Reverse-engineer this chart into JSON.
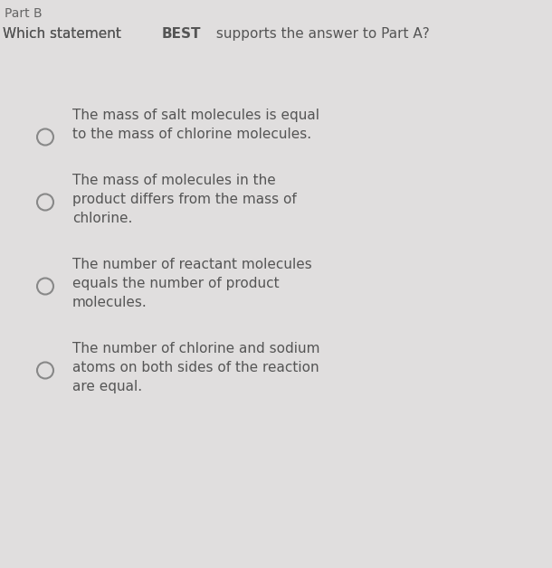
{
  "header_part": "Part B",
  "options": [
    {
      "lines": [
        "The mass of salt molecules is equal",
        "to the mass of chlorine molecules."
      ],
      "circle_line_idx": 1
    },
    {
      "lines": [
        "The mass of molecules in the",
        "product differs from the mass of",
        "chlorine."
      ],
      "circle_line_idx": 1
    },
    {
      "lines": [
        "The number of reactant molecules",
        "equals the number of product",
        "molecules."
      ],
      "circle_line_idx": 1
    },
    {
      "lines": [
        "The number of chlorine and sodium",
        "atoms on both sides of the reaction",
        "are equal."
      ],
      "circle_line_idx": 1
    }
  ],
  "bg_color": "#e0dede",
  "text_color": "#555555",
  "header_color": "#666666",
  "circle_color": "#888888",
  "font_size_header": 10,
  "font_size_question": 11,
  "font_size_option": 11
}
